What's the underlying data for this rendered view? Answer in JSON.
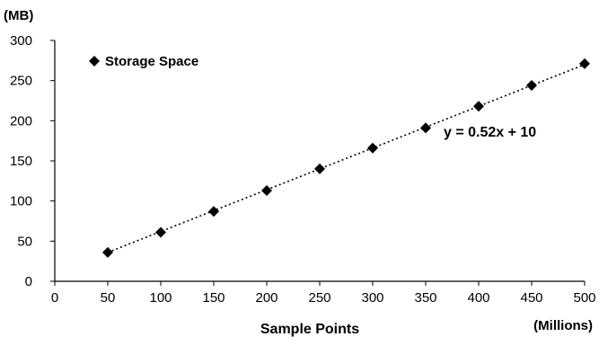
{
  "chart_data": {
    "type": "scatter",
    "title": "",
    "xlabel": "Sample Points",
    "x_unit": "(Millions)",
    "y_unit": "(MB)",
    "xlim": [
      0,
      500
    ],
    "ylim": [
      0,
      300
    ],
    "x_ticks": [
      0,
      50,
      100,
      150,
      200,
      250,
      300,
      350,
      400,
      450,
      500
    ],
    "y_ticks": [
      0,
      50,
      100,
      150,
      200,
      250,
      300
    ],
    "grid": false,
    "legend_position": "top-left",
    "series": [
      {
        "name": "Storage Space",
        "marker": "diamond",
        "color": "#000000",
        "x": [
          50,
          100,
          150,
          200,
          250,
          300,
          350,
          400,
          450,
          500
        ],
        "y": [
          36,
          61,
          87,
          113,
          140,
          166,
          191,
          218,
          244,
          271
        ]
      }
    ],
    "trendline": {
      "style": "dotted",
      "equation": "y = 0.52x + 10",
      "slope": 0.52,
      "intercept": 10,
      "x_range": [
        50,
        500
      ]
    }
  }
}
